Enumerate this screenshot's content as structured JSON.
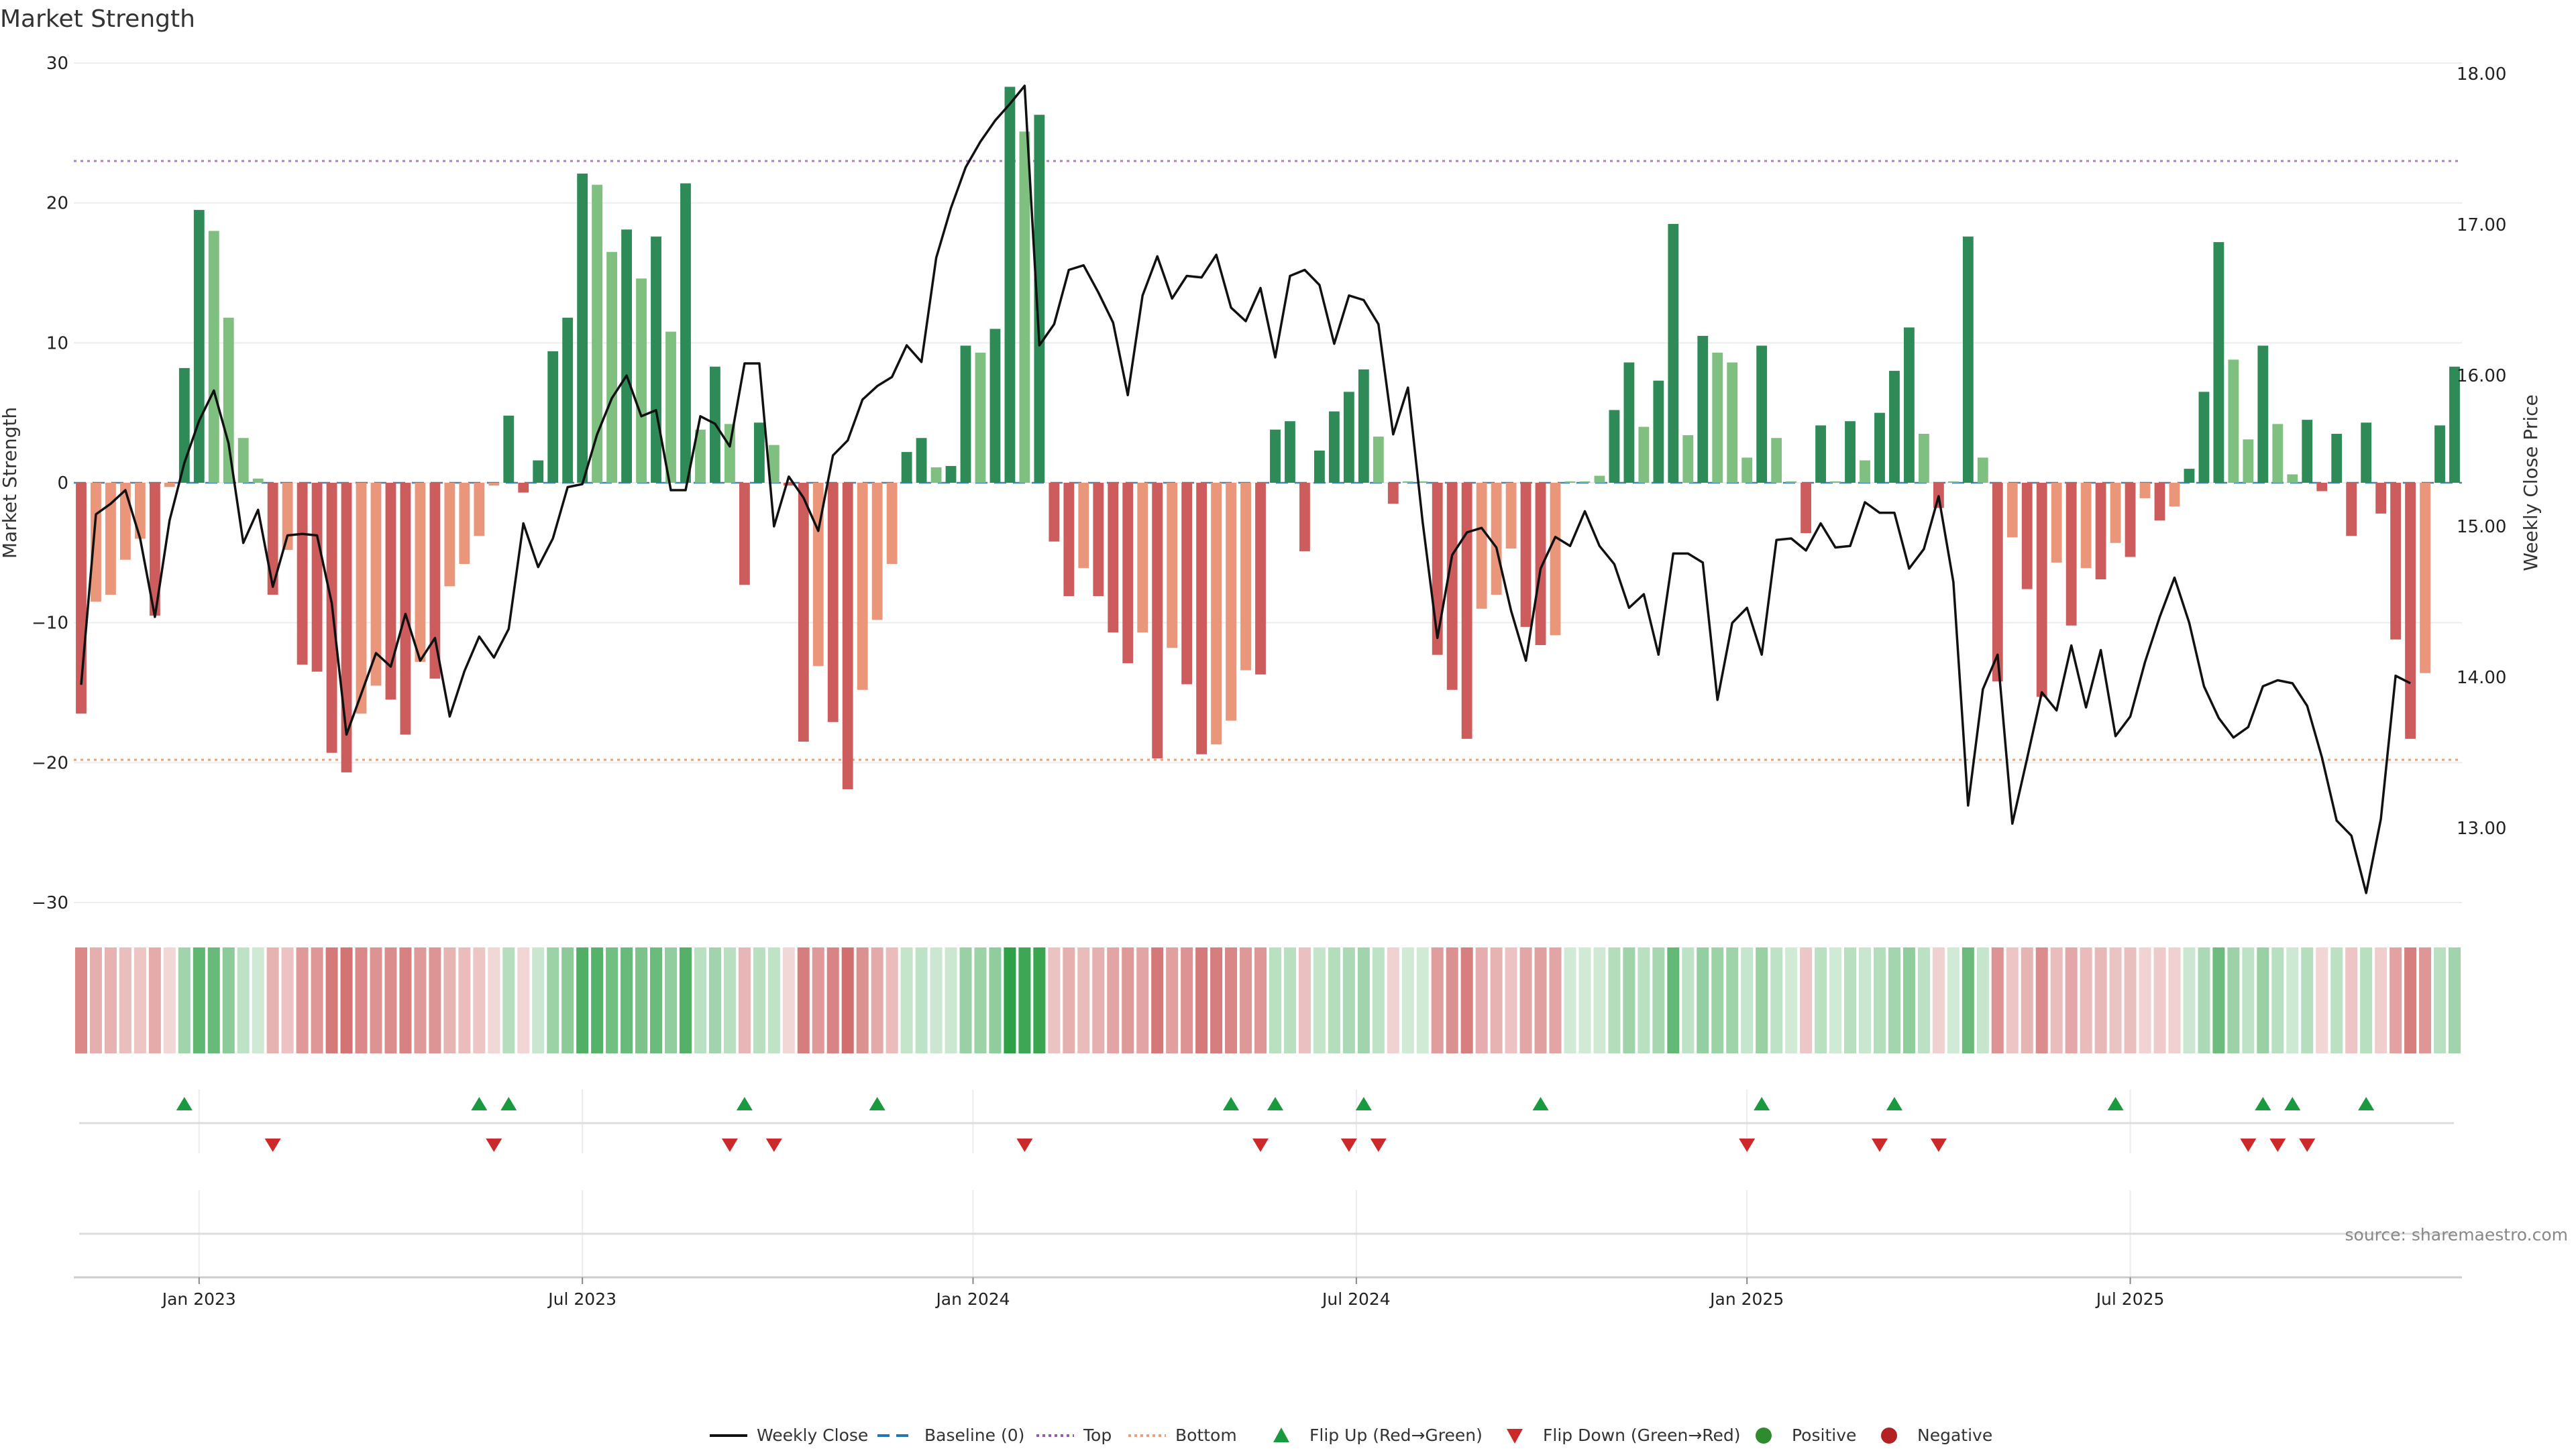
{
  "chart_data": {
    "type": "bar",
    "title": "Market Strength",
    "ylabel": "Market Strength",
    "y2label": "Weekly Close Price",
    "ylim": [
      -30,
      30
    ],
    "y2lim": [
      12.4,
      18.0
    ],
    "yticks": [
      30,
      20,
      10,
      0,
      -10,
      -20,
      -30
    ],
    "yticklabels": [
      "30",
      "20",
      "10",
      "0",
      "−10",
      "−20",
      "−30"
    ],
    "y2ticks": [
      18,
      17,
      16,
      15,
      14,
      13
    ],
    "y2ticklabels": [
      "18.00",
      "17.00",
      "16.00",
      "15.00",
      "14.00",
      "13.00"
    ],
    "xticks": [
      {
        "label": "Jan 2023",
        "week": 8.5
      },
      {
        "label": "Jul 2023",
        "week": 34.5
      },
      {
        "label": "Jan 2024",
        "week": 61
      },
      {
        "label": "Jul 2024",
        "week": 87
      },
      {
        "label": "Jan 2025",
        "week": 113.5
      },
      {
        "label": "Jul 2025",
        "week": 139.5
      }
    ],
    "top_line": 23,
    "bottom_line": -19.8,
    "strength": [
      -16.5,
      -8.5,
      -8,
      -5.5,
      -4,
      -9.5,
      -0.3,
      8.2,
      19.5,
      18,
      11.8,
      3.2,
      0.3,
      -8,
      -4.8,
      -13,
      -13.5,
      -19.3,
      -20.7,
      -16.5,
      -14.5,
      -15.5,
      -18,
      -12.8,
      -14,
      -7.4,
      -5.8,
      -3.8,
      -0.2,
      4.8,
      -0.7,
      1.6,
      9.4,
      11.8,
      22.1,
      21.3,
      16.5,
      18.1,
      14.6,
      17.6,
      10.8,
      21.4,
      3.8,
      8.3,
      4.2,
      -7.3,
      4.3,
      2.7,
      -0.2,
      -18.5,
      -13.1,
      -17.1,
      -21.9,
      -14.8,
      -9.8,
      -5.8,
      2.2,
      3.2,
      1.1,
      1.2,
      9.8,
      9.3,
      11,
      28.3,
      25.1,
      26.3,
      -4.2,
      -8.1,
      -6.1,
      -8.1,
      -10.7,
      -12.9,
      -10.7,
      -19.7,
      -11.8,
      -14.4,
      -19.4,
      -18.7,
      -17,
      -13.4,
      -13.7,
      3.8,
      4.4,
      -4.9,
      2.3,
      5.1,
      6.5,
      8.1,
      3.3,
      -1.5,
      0.1,
      0.1,
      -12.3,
      -14.8,
      -18.3,
      -9,
      -8,
      -4.7,
      -10.3,
      -11.6,
      -10.9,
      0.1,
      0.1,
      0.5,
      5.2,
      8.6,
      4,
      7.3,
      18.5,
      3.4,
      10.5,
      9.3,
      8.6,
      1.8,
      9.8,
      3.2,
      0.1,
      -3.6,
      4.1,
      0.1,
      4.4,
      1.6,
      5,
      8,
      11.1,
      3.5,
      -1.8,
      0.1,
      17.6,
      1.8,
      -14.2,
      -3.9,
      -7.6,
      -15.3,
      -5.7,
      -10.2,
      -6.1,
      -6.9,
      -4.3,
      -5.3,
      -1.1,
      -2.7,
      -1.7,
      1,
      6.5,
      17.2,
      8.8,
      3.1,
      9.8,
      4.2,
      0.6,
      4.5,
      -0.6,
      3.5,
      -3.8,
      4.3,
      -2.2,
      -11.2,
      -18.3,
      -13.6,
      4.1,
      8.3
    ],
    "weekly_close": [
      13.95,
      15.08,
      15.15,
      15.24,
      14.92,
      14.4,
      15.04,
      15.42,
      15.7,
      15.9,
      15.55,
      14.89,
      15.11,
      14.6,
      14.94,
      14.95,
      14.94,
      14.49,
      13.62,
      13.89,
      14.16,
      14.07,
      14.42,
      14.11,
      14.26,
      13.74,
      14.04,
      14.27,
      14.13,
      14.32,
      15.02,
      14.73,
      14.92,
      15.26,
      15.28,
      15.61,
      15.85,
      16.0,
      15.73,
      15.77,
      15.24,
      15.24,
      15.73,
      15.68,
      15.53,
      16.08,
      16.08,
      15.0,
      15.33,
      15.19,
      14.97,
      15.47,
      15.57,
      15.84,
      15.93,
      15.99,
      16.2,
      16.09,
      16.78,
      17.11,
      17.38,
      17.55,
      17.69,
      17.8,
      17.92,
      16.2,
      16.34,
      16.7,
      16.73,
      16.55,
      16.35,
      15.87,
      16.53,
      16.79,
      16.51,
      16.66,
      16.65,
      16.8,
      16.45,
      16.36,
      16.58,
      16.12,
      16.66,
      16.7,
      16.6,
      16.21,
      16.53,
      16.5,
      16.34,
      15.61,
      15.92,
      15.03,
      14.26,
      14.81,
      14.96,
      14.99,
      14.86,
      14.44,
      14.11,
      14.72,
      14.93,
      14.87,
      15.1,
      14.87,
      14.75,
      14.46,
      14.55,
      14.15,
      14.82,
      14.82,
      14.76,
      13.85,
      14.36,
      14.46,
      14.15,
      14.91,
      14.92,
      14.84,
      15.02,
      14.86,
      14.87,
      15.16,
      15.09,
      15.09,
      14.72,
      14.85,
      15.2,
      14.63,
      13.15,
      13.92,
      14.15,
      13.03,
      13.46,
      13.9,
      13.78,
      14.21,
      13.8,
      14.18,
      13.61,
      13.74,
      14.1,
      14.4,
      14.66,
      14.36,
      13.94,
      13.73,
      13.6,
      13.67,
      13.94,
      13.98,
      13.96,
      13.81,
      13.47,
      13.05,
      12.95,
      12.57,
      13.06,
      14.01,
      13.96
    ],
    "heat_strip": [
      -16.5,
      -8.5,
      -8,
      -5.5,
      -4,
      -9.5,
      -0.3,
      8.2,
      19.5,
      18,
      11.8,
      3.2,
      0.3,
      -8,
      -4.8,
      -13,
      -13.5,
      -19.3,
      -20.7,
      -16.5,
      -14.5,
      -15.5,
      -18,
      -12.8,
      -14,
      -7.4,
      -5.8,
      -3.8,
      -0.2,
      4.8,
      -0.7,
      1.6,
      9.4,
      11.8,
      22.1,
      21.3,
      16.5,
      18.1,
      14.6,
      17.6,
      10.8,
      21.4,
      3.8,
      8.3,
      4.2,
      -7.3,
      4.3,
      2.7,
      -0.2,
      -18.5,
      -13.1,
      -17.1,
      -21.9,
      -14.8,
      -9.8,
      -5.8,
      2.2,
      3.2,
      1.1,
      1.2,
      9.8,
      9.3,
      11,
      28.3,
      25.1,
      26.3,
      -4.2,
      -8.1,
      -6.1,
      -8.1,
      -10.7,
      -12.9,
      -10.7,
      -19.7,
      -11.8,
      -14.4,
      -19.4,
      -18.7,
      -17,
      -13.4,
      -13.7,
      3.8,
      4.4,
      -4.9,
      2.3,
      5.1,
      6.5,
      8.1,
      3.3,
      -1.5,
      0.1,
      0.1,
      -12.3,
      -14.8,
      -18.3,
      -9,
      -8,
      -4.7,
      -10.3,
      -11.6,
      -10.9,
      0.1,
      0.1,
      0.5,
      5.2,
      8.6,
      4,
      7.3,
      18.5,
      3.4,
      10.5,
      9.3,
      8.6,
      1.8,
      9.8,
      3.2,
      0.1,
      -3.6,
      4.1,
      0.1,
      4.4,
      1.6,
      5,
      8,
      11.1,
      3.5,
      -1.8,
      0.1,
      17.6,
      1.8,
      -14.2,
      -3.9,
      -7.6,
      -15.3,
      -5.7,
      -10.2,
      -6.1,
      -6.9,
      -4.3,
      -5.3,
      -1.1,
      -2.7,
      -1.7,
      1,
      6.5,
      17.2,
      8.8,
      3.1,
      9.8,
      4.2,
      0.6,
      4.5,
      -0.6,
      3.5,
      -3.8,
      4.3,
      -2.2,
      -11.2,
      -18.3,
      -13.6,
      4.1,
      8.3
    ],
    "flip_up_weeks": [
      7,
      27,
      29,
      45,
      54,
      78,
      81,
      87,
      99,
      114,
      123,
      138,
      148,
      150,
      155
    ],
    "flip_down_weeks": [
      13,
      28,
      44,
      47,
      64,
      80,
      86,
      88,
      113,
      122,
      126,
      147,
      149,
      151
    ],
    "legend_position": "bottom-center",
    "legend": [
      {
        "label": "Weekly Close",
        "kind": "line",
        "color": "#111111"
      },
      {
        "label": "Baseline (0)",
        "kind": "dash",
        "color": "#1f77b4"
      },
      {
        "label": "Top",
        "kind": "dot",
        "color": "#9b59b6"
      },
      {
        "label": "Bottom",
        "kind": "dot",
        "color": "#f0a070"
      },
      {
        "label": "Flip Up (Red→Green)",
        "kind": "tri-up",
        "color": "#1a9a3f"
      },
      {
        "label": "Flip Down (Green→Red)",
        "kind": "tri-down",
        "color": "#cc2a2a"
      },
      {
        "label": "Positive",
        "kind": "circle",
        "color": "#2e8b2e"
      },
      {
        "label": "Negative",
        "kind": "circle",
        "color": "#b22222"
      }
    ],
    "source": "source: sharemaestro.com",
    "colors": {
      "pos_strong": "#2e8b57",
      "pos_light": "#7fbf7f",
      "neg_strong": "#cd5c5c",
      "neg_light": "#e9967a",
      "close_line": "#111111",
      "top_line": "#b07cc6",
      "bottom_line": "#f0a070",
      "baseline": "#4682b4"
    }
  }
}
